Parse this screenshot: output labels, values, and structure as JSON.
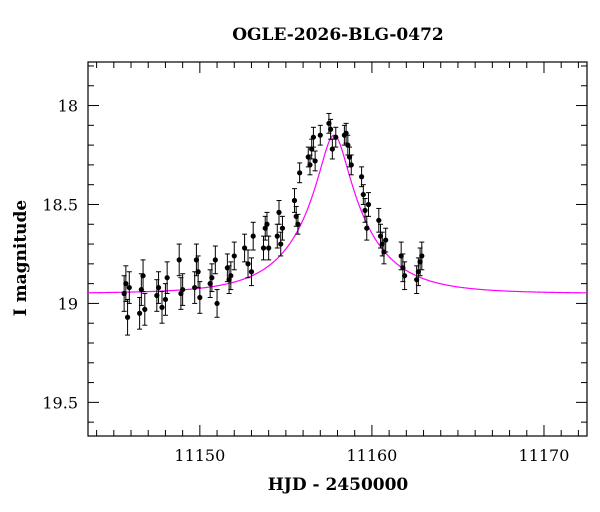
{
  "chart_data": {
    "type": "scatter",
    "title": "OGLE-2026-BLG-0472",
    "xlabel": "HJD - 2450000",
    "ylabel": "I magnitude",
    "xlim": [
      11143.5,
      11172.5
    ],
    "ylim": [
      19.67,
      17.78
    ],
    "y_inverted": true,
    "xticks_major": [
      11150,
      11160,
      11170
    ],
    "xticks_minor_step": 1,
    "yticks_major": [
      18,
      18.5,
      19,
      19.5
    ],
    "yticks_minor_step": 0.1,
    "grid": false,
    "legend": "none",
    "colors": {
      "points": "#000000",
      "model": "#ff00ff"
    },
    "model": {
      "name": "",
      "t0": 11157.8,
      "u0": 0.2,
      "tE": 3.8,
      "baseline_mag": 18.95,
      "peak_mag": 18.15
    },
    "series": [
      {
        "type": "errorbar",
        "x": [
          11145.6,
          11145.7,
          11145.8,
          11145.9,
          11146.5,
          11146.6,
          11146.7,
          11146.8,
          11147.5,
          11147.6,
          11147.8,
          11148.0,
          11148.1,
          11148.8,
          11148.9,
          11149.0,
          11149.7,
          11149.8,
          11149.9,
          11150.0,
          11150.6,
          11150.7,
          11150.9,
          11151.0,
          11151.6,
          11151.7,
          11151.8,
          11152.0,
          11152.6,
          11152.8,
          11153.0,
          11153.1,
          11153.7,
          11153.8,
          11153.9,
          11154.0,
          11154.5,
          11154.6,
          11154.7,
          11154.8,
          11155.5,
          11155.6,
          11155.7,
          11155.8,
          11156.3,
          11156.4,
          11156.5,
          11156.6,
          11156.7,
          11157.0,
          11157.5,
          11157.6,
          11157.7,
          11157.9,
          11158.4,
          11158.5,
          11158.6,
          11158.7,
          11158.8,
          11159.4,
          11159.5,
          11159.6,
          11159.7,
          11159.8,
          11160.4,
          11160.5,
          11160.6,
          11160.7,
          11160.8,
          11161.7,
          11161.8,
          11161.9,
          11162.6,
          11162.7,
          11162.8,
          11162.9
        ],
        "y": [
          18.95,
          18.9,
          19.07,
          18.92,
          19.05,
          18.93,
          18.86,
          19.03,
          18.96,
          18.92,
          19.02,
          18.98,
          18.87,
          18.78,
          18.95,
          18.93,
          18.92,
          18.78,
          18.84,
          18.97,
          18.9,
          18.87,
          18.78,
          19.0,
          18.82,
          18.88,
          18.86,
          18.76,
          18.72,
          18.8,
          18.84,
          18.66,
          18.72,
          18.62,
          18.6,
          18.72,
          18.66,
          18.54,
          18.7,
          18.62,
          18.48,
          18.56,
          18.6,
          18.34,
          18.26,
          18.3,
          18.22,
          18.16,
          18.28,
          18.15,
          18.09,
          18.12,
          18.22,
          18.16,
          18.15,
          18.14,
          18.2,
          18.26,
          18.3,
          18.36,
          18.45,
          18.53,
          18.62,
          18.5,
          18.58,
          18.66,
          18.7,
          18.74,
          18.68,
          18.76,
          18.82,
          18.86,
          18.88,
          18.84,
          18.79,
          18.76
        ],
        "yerr": [
          0.09,
          0.09,
          0.09,
          0.08,
          0.08,
          0.08,
          0.08,
          0.08,
          0.08,
          0.08,
          0.08,
          0.08,
          0.08,
          0.08,
          0.08,
          0.08,
          0.08,
          0.08,
          0.08,
          0.08,
          0.07,
          0.07,
          0.07,
          0.07,
          0.07,
          0.07,
          0.07,
          0.07,
          0.07,
          0.07,
          0.07,
          0.07,
          0.06,
          0.06,
          0.06,
          0.06,
          0.06,
          0.06,
          0.06,
          0.06,
          0.06,
          0.05,
          0.05,
          0.05,
          0.05,
          0.05,
          0.05,
          0.05,
          0.05,
          0.05,
          0.05,
          0.05,
          0.05,
          0.05,
          0.05,
          0.05,
          0.05,
          0.05,
          0.05,
          0.05,
          0.05,
          0.06,
          0.06,
          0.06,
          0.06,
          0.06,
          0.06,
          0.06,
          0.06,
          0.07,
          0.07,
          0.07,
          0.07,
          0.07,
          0.07,
          0.07
        ]
      }
    ]
  }
}
